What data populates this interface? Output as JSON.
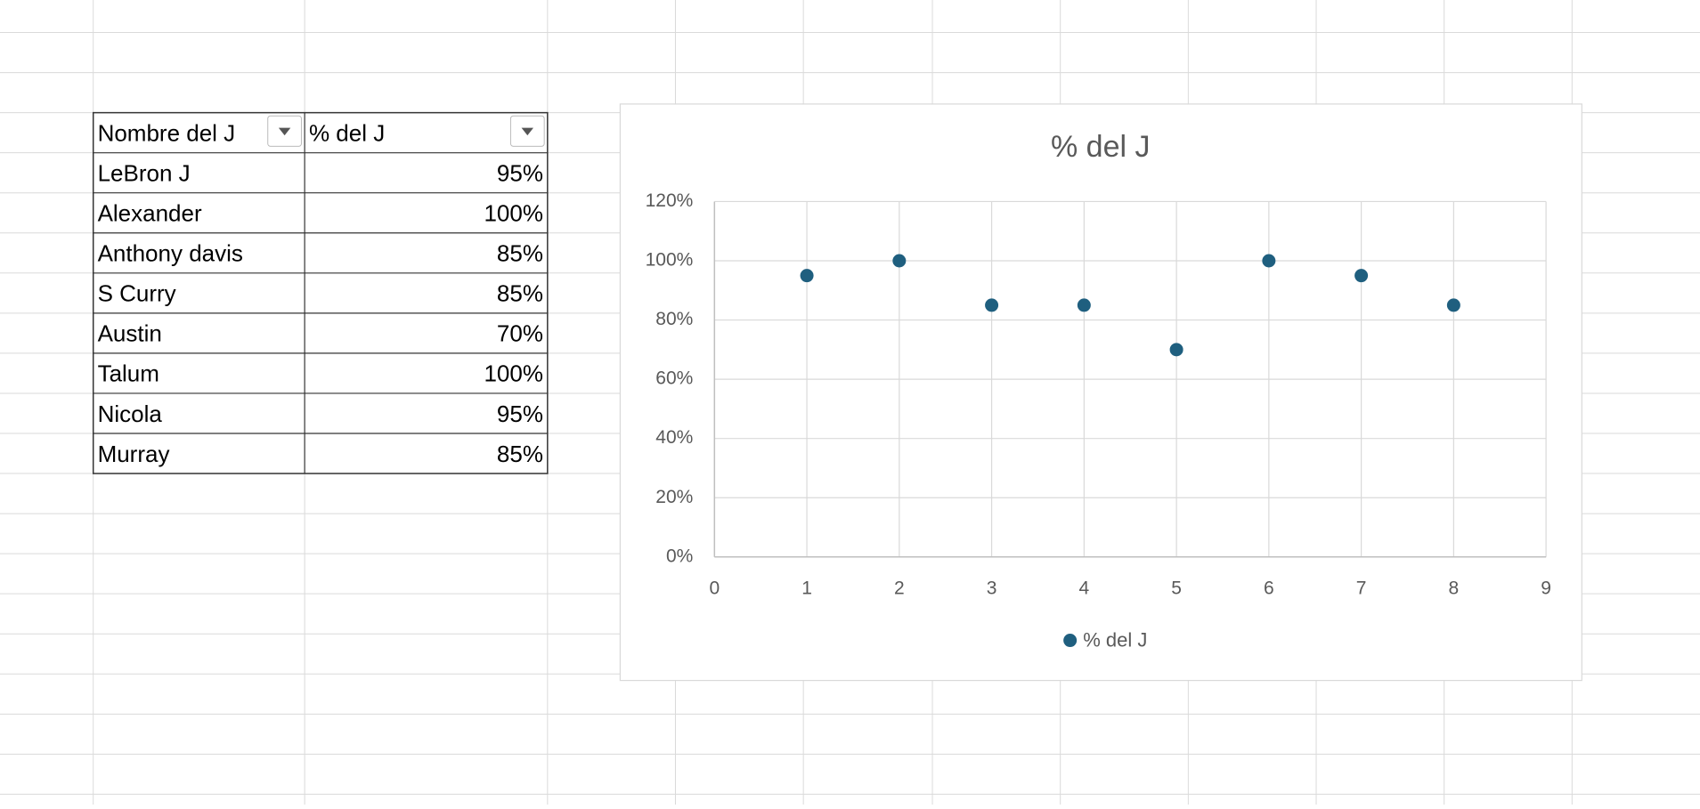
{
  "table": {
    "headers": [
      "Nombre del J",
      "% del J"
    ],
    "rows": [
      [
        "LeBron J",
        "95%"
      ],
      [
        "Alexander",
        "100%"
      ],
      [
        "Anthony davis",
        "85%"
      ],
      [
        "S Curry",
        "85%"
      ],
      [
        "Austin",
        "70%"
      ],
      [
        "Talum",
        "100%"
      ],
      [
        "Nicola",
        "95%"
      ],
      [
        "Murray",
        "85%"
      ]
    ]
  },
  "chart_data": {
    "type": "scatter",
    "title": "% del J",
    "x": [
      1,
      2,
      3,
      4,
      5,
      6,
      7,
      8
    ],
    "series": [
      {
        "name": "% del J",
        "color": "#1f5f7f",
        "values": [
          95,
          100,
          85,
          85,
          70,
          100,
          95,
          85
        ]
      }
    ],
    "xlim": [
      0,
      9
    ],
    "xticks": [
      0,
      1,
      2,
      3,
      4,
      5,
      6,
      7,
      8,
      9
    ],
    "ylim": [
      0,
      120
    ],
    "yticks": [
      {
        "value": 0,
        "label": "0%"
      },
      {
        "value": 20,
        "label": "20%"
      },
      {
        "value": 40,
        "label": "40%"
      },
      {
        "value": 60,
        "label": "60%"
      },
      {
        "value": 80,
        "label": "80%"
      },
      {
        "value": 100,
        "label": "100%"
      },
      {
        "value": 120,
        "label": "120%"
      }
    ],
    "grid": true,
    "legend": "bottom"
  }
}
